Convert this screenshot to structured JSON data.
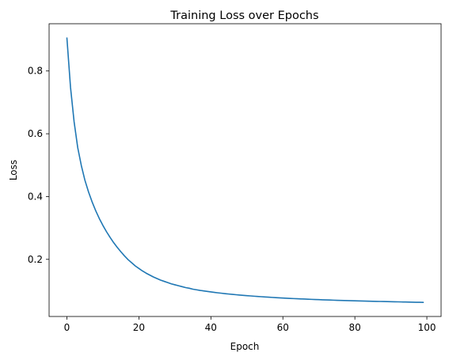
{
  "chart_data": {
    "type": "line",
    "title": "Training Loss over Epochs",
    "xlabel": "Epoch",
    "ylabel": "Loss",
    "xlim": [
      -4.95,
      103.95
    ],
    "ylim": [
      0.018,
      0.9505
    ],
    "xticks": [
      0,
      20,
      40,
      60,
      80,
      100
    ],
    "yticks": [
      0.2,
      0.4,
      0.6,
      0.8
    ],
    "ytick_labels": [
      "0.2",
      "0.4",
      "0.6",
      "0.8"
    ],
    "grid": false,
    "line_color": "#1f77b4",
    "series": [
      {
        "x": [
          0,
          1,
          2,
          3,
          4,
          5,
          6,
          7,
          8,
          9,
          10,
          11,
          12,
          13,
          14,
          15,
          16,
          17,
          18,
          19,
          20,
          21,
          22,
          23,
          24,
          25,
          26,
          27,
          28,
          29,
          30,
          31,
          32,
          33,
          34,
          35,
          36,
          37,
          38,
          39,
          40,
          41,
          42,
          43,
          44,
          45,
          46,
          47,
          48,
          49,
          50,
          51,
          52,
          53,
          54,
          55,
          56,
          57,
          58,
          59,
          60,
          61,
          62,
          63,
          64,
          65,
          66,
          67,
          68,
          69,
          70,
          71,
          72,
          73,
          74,
          75,
          76,
          77,
          78,
          79,
          80,
          81,
          82,
          83,
          84,
          85,
          86,
          87,
          88,
          89,
          90,
          91,
          92,
          93,
          94,
          95,
          96,
          97,
          98,
          99
        ],
        "y": [
          0.905,
          0.748,
          0.638,
          0.556,
          0.499,
          0.452,
          0.415,
          0.383,
          0.355,
          0.33,
          0.308,
          0.288,
          0.27,
          0.253,
          0.238,
          0.224,
          0.211,
          0.199,
          0.189,
          0.179,
          0.171,
          0.163,
          0.156,
          0.15,
          0.144,
          0.139,
          0.134,
          0.13,
          0.126,
          0.122,
          0.119,
          0.116,
          0.113,
          0.11,
          0.108,
          0.105,
          0.103,
          0.101,
          0.0995,
          0.0978,
          0.0962,
          0.0947,
          0.0933,
          0.092,
          0.0907,
          0.0895,
          0.0884,
          0.0873,
          0.0863,
          0.0853,
          0.0844,
          0.0835,
          0.0826,
          0.0818,
          0.081,
          0.0802,
          0.0795,
          0.0788,
          0.0781,
          0.0774,
          0.0768,
          0.0762,
          0.0756,
          0.075,
          0.0745,
          0.074,
          0.0735,
          0.073,
          0.0725,
          0.072,
          0.0716,
          0.0712,
          0.0708,
          0.0704,
          0.07,
          0.0696,
          0.0692,
          0.0689,
          0.0686,
          0.0682,
          0.0679,
          0.0676,
          0.0673,
          0.067,
          0.0667,
          0.0664,
          0.0661,
          0.0659,
          0.0656,
          0.0653,
          0.0651,
          0.0648,
          0.0646,
          0.0643,
          0.0641,
          0.0638,
          0.0636,
          0.0633,
          0.0631,
          0.0629
        ]
      }
    ]
  }
}
